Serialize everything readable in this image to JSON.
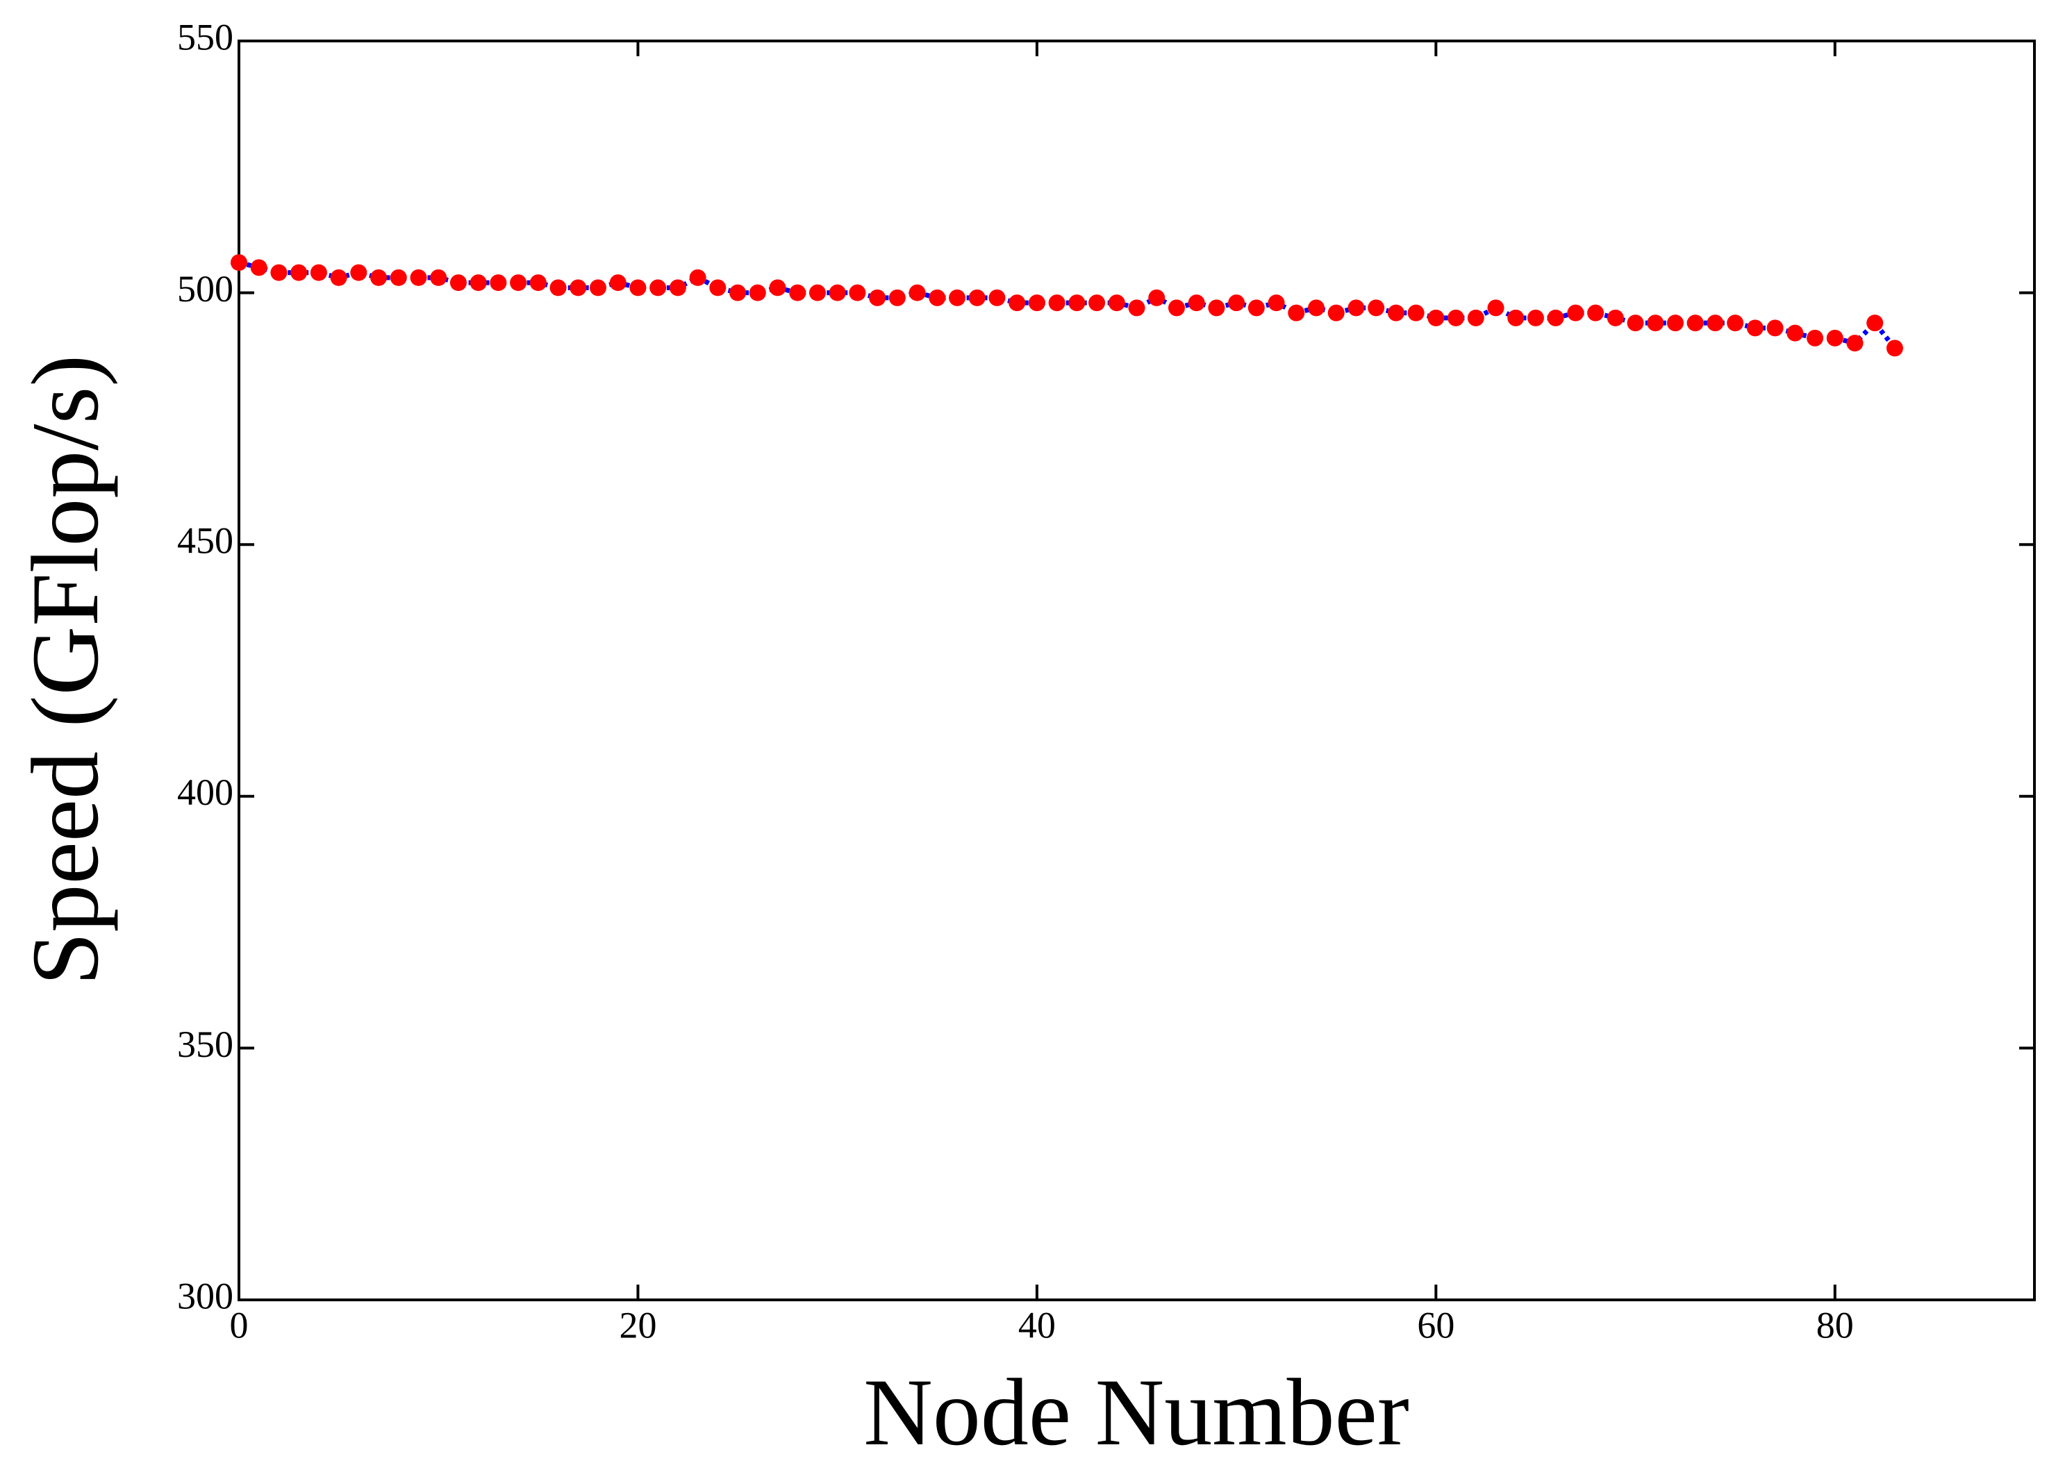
{
  "chart_data": {
    "type": "line",
    "x_label": "Node Number",
    "y_label": "Speed (GFlop/s)",
    "x": [
      0,
      1,
      2,
      3,
      4,
      5,
      6,
      7,
      8,
      9,
      10,
      11,
      12,
      13,
      14,
      15,
      16,
      17,
      18,
      19,
      20,
      21,
      22,
      23,
      24,
      25,
      26,
      27,
      28,
      29,
      30,
      31,
      32,
      33,
      34,
      35,
      36,
      37,
      38,
      39,
      40,
      41,
      42,
      43,
      44,
      45,
      46,
      47,
      48,
      49,
      50,
      51,
      52,
      53,
      54,
      55,
      56,
      57,
      58,
      59,
      60,
      61,
      62,
      63,
      64,
      65,
      66,
      67,
      68,
      69,
      70,
      71,
      72,
      73,
      74,
      75,
      76,
      77,
      78,
      79,
      80,
      81,
      82,
      83
    ],
    "values": [
      506,
      505,
      504,
      504,
      504,
      503,
      504,
      503,
      503,
      503,
      503,
      502,
      502,
      502,
      502,
      502,
      501,
      501,
      501,
      502,
      501,
      501,
      501,
      503,
      501,
      500,
      500,
      501,
      500,
      500,
      500,
      500,
      499,
      499,
      500,
      499,
      499,
      499,
      499,
      498,
      498,
      498,
      498,
      498,
      498,
      497,
      499,
      497,
      498,
      497,
      498,
      497,
      498,
      496,
      497,
      496,
      497,
      497,
      496,
      496,
      495,
      495,
      495,
      497,
      495,
      495,
      495,
      496,
      496,
      495,
      494,
      494,
      494,
      494,
      494,
      494,
      493,
      493,
      492,
      491,
      491,
      490,
      494,
      489
    ],
    "line_color": "#0000ff",
    "marker_color": "#ff0000",
    "xlim": [
      0,
      90
    ],
    "xticks": [
      0,
      20,
      40,
      60,
      80
    ],
    "ylim": [
      300,
      550
    ],
    "yticks": [
      300,
      350,
      400,
      450,
      500,
      550
    ]
  }
}
